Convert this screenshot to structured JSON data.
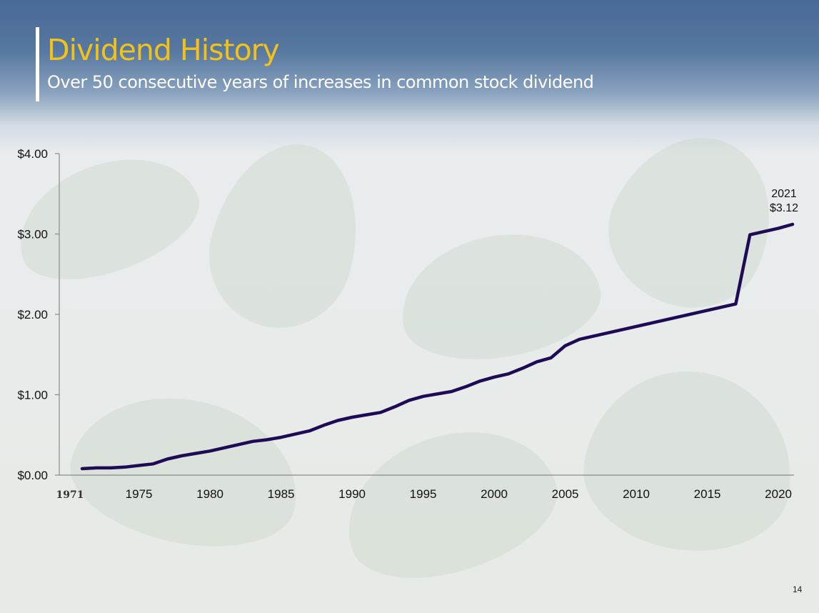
{
  "slide": {
    "title": "Dividend History",
    "subtitle": "Over 50 consecutive years of increases in common stock dividend",
    "page_number": "14"
  },
  "colors": {
    "title": "#f2c21a",
    "line": "#1e0a55",
    "header_bg": "#4a6a96"
  },
  "chart_data": {
    "type": "line",
    "title": "",
    "xlabel": "",
    "ylabel": "",
    "ylim": [
      0,
      4
    ],
    "yticks": [
      "$0.00",
      "$1.00",
      "$2.00",
      "$3.00",
      "$4.00"
    ],
    "xticks": [
      "1971",
      "1975",
      "1980",
      "1985",
      "1990",
      "1995",
      "2000",
      "2005",
      "2010",
      "2015",
      "2020"
    ],
    "x": [
      1971,
      1972,
      1973,
      1974,
      1975,
      1976,
      1977,
      1978,
      1979,
      1980,
      1981,
      1982,
      1983,
      1984,
      1985,
      1986,
      1987,
      1988,
      1989,
      1990,
      1991,
      1992,
      1993,
      1994,
      1995,
      1996,
      1997,
      1998,
      1999,
      2000,
      2001,
      2002,
      2003,
      2004,
      2005,
      2006,
      2007,
      2008,
      2009,
      2010,
      2011,
      2012,
      2013,
      2014,
      2015,
      2016,
      2017,
      2018,
      2019,
      2020,
      2021
    ],
    "values": [
      0.08,
      0.09,
      0.09,
      0.1,
      0.12,
      0.14,
      0.2,
      0.24,
      0.27,
      0.3,
      0.34,
      0.38,
      0.42,
      0.44,
      0.47,
      0.51,
      0.55,
      0.62,
      0.68,
      0.72,
      0.75,
      0.78,
      0.85,
      0.93,
      0.98,
      1.01,
      1.04,
      1.1,
      1.17,
      1.22,
      1.26,
      1.33,
      1.41,
      1.46,
      1.61,
      1.69,
      1.73,
      1.77,
      1.81,
      1.85,
      1.89,
      1.93,
      1.97,
      2.01,
      2.05,
      2.09,
      2.13,
      2.99,
      3.03,
      3.07,
      3.12
    ],
    "annotation": {
      "year": "2021",
      "value": "$3.12"
    },
    "grid": false,
    "legend": "none"
  }
}
